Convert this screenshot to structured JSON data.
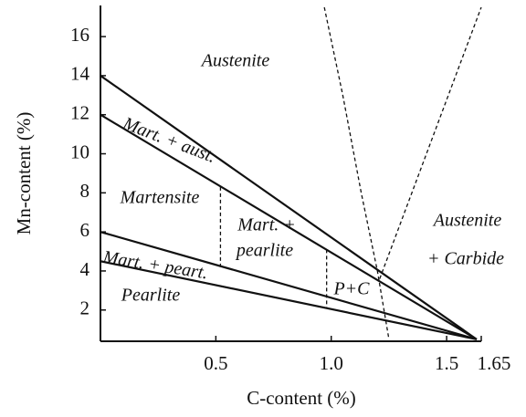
{
  "chart_data": {
    "type": "line",
    "xlabel": "C-content (%)",
    "ylabel": "Mn-content (%)",
    "xlim": [
      0,
      1.65
    ],
    "ylim": [
      0.4,
      17.5
    ],
    "xticks": [
      0.5,
      {
        "value": 1,
        "label": "1.0"
      },
      1.5,
      1.65
    ],
    "yticks": [
      2,
      4,
      6,
      8,
      10,
      12,
      14,
      16
    ],
    "series": [
      {
        "color": "#111111",
        "dashed": false,
        "x": [
          0,
          1.63
        ],
        "values": [
          14,
          0.5
        ]
      },
      {
        "color": "#111111",
        "dashed": false,
        "x": [
          0,
          1.63
        ],
        "values": [
          12,
          0.5
        ]
      },
      {
        "color": "#111111",
        "dashed": false,
        "x": [
          0,
          1.63
        ],
        "values": [
          6,
          0.5
        ]
      },
      {
        "color": "#111111",
        "dashed": false,
        "x": [
          0,
          1.63
        ],
        "values": [
          4.5,
          0.5
        ]
      },
      {
        "color": "#111111",
        "dashed": true,
        "x": [
          0.52,
          0.52
        ],
        "values": [
          8.3,
          4.2
        ]
      },
      {
        "color": "#111111",
        "dashed": true,
        "x": [
          0.98,
          0.98
        ],
        "values": [
          5.1,
          2.1
        ]
      },
      {
        "color": "#111111",
        "dashed": true,
        "x": [
          0.97,
          1.05,
          1.13,
          1.2,
          1.25
        ],
        "values": [
          17.5,
          13,
          8,
          4,
          0.5
        ]
      },
      {
        "color": "#111111",
        "dashed": true,
        "x": [
          1.21,
          1.65
        ],
        "values": [
          3.6,
          17.5
        ]
      }
    ],
    "annotations": [
      "Austenite",
      "Mart. + aust.",
      "Martensite",
      "Mart. +",
      "pearlite",
      "Mart. + peart.",
      "Pearlite",
      "P+C",
      "Austenite",
      "+ Carbide"
    ]
  }
}
